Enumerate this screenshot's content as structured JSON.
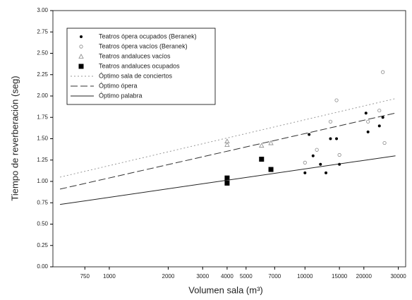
{
  "chart_data": {
    "type": "scatter",
    "xscale": "log",
    "x_label": "Volumen sala (m³)",
    "y_label": "Tiempo de reverberación (seg)",
    "xlim": [
      515,
      32700
    ],
    "ylim": [
      0,
      3
    ],
    "xticks": [
      750,
      1000,
      2000,
      3000,
      4000,
      5000,
      7000,
      10000,
      15000,
      20000,
      30000
    ],
    "yticks": [
      {
        "value": 0,
        "label": "0.00"
      },
      {
        "value": 0.25,
        "label": "0.25"
      },
      {
        "value": 0.5,
        "label": "0.50"
      },
      {
        "value": 0.75,
        "label": "0.75"
      },
      {
        "value": 1,
        "label": "1.00"
      },
      {
        "value": 1.25,
        "label": "1.25"
      },
      {
        "value": 1.5,
        "label": "1.50"
      },
      {
        "value": 1.75,
        "label": "1.75"
      },
      {
        "value": 2,
        "label": "2.00"
      },
      {
        "value": 2.25,
        "label": "2.25"
      },
      {
        "value": 2.5,
        "label": "2.50"
      },
      {
        "value": 2.75,
        "label": "2.75"
      },
      {
        "value": 3,
        "label": "3.00"
      }
    ],
    "series": [
      {
        "name": "Teatros ópera ocupados (Beranek)",
        "color": "#000000",
        "marker": "dot",
        "x": [
          10000,
          10500,
          11000,
          12000,
          12800,
          13500,
          14500,
          15000,
          20500,
          21000,
          24000,
          25000
        ],
        "values": [
          1.1,
          1.55,
          1.3,
          1.2,
          1.1,
          1.5,
          1.5,
          1.2,
          1.8,
          1.58,
          1.65,
          1.75
        ]
      },
      {
        "name": "Teatros ópera vacíos (Beranek)",
        "color": "#888888",
        "marker": "circle",
        "x": [
          10000,
          11500,
          13500,
          14500,
          15000,
          21000,
          24000,
          25000,
          25500
        ],
        "values": [
          1.22,
          1.37,
          1.7,
          1.95,
          1.31,
          1.7,
          1.83,
          2.28,
          1.45
        ]
      },
      {
        "name": "Teatros andaluces vacíos",
        "color": "#888888",
        "marker": "triangle",
        "x": [
          4000,
          4000,
          6000,
          6700
        ],
        "values": [
          1.47,
          1.43,
          1.42,
          1.45
        ]
      },
      {
        "name": "Teatros andaluces ocupados",
        "color": "#000000",
        "marker": "square",
        "x": [
          4000,
          4000,
          6000,
          6700
        ],
        "values": [
          1.04,
          0.98,
          1.26,
          1.14
        ]
      },
      {
        "name": "Óptimo sala de conciertos",
        "color": "#999999",
        "line": "dotted",
        "x": [
          560,
          29000
        ],
        "values": [
          1.05,
          1.97
        ]
      },
      {
        "name": "Óptimo ópera",
        "color": "#333333",
        "line": "dashed",
        "x": [
          560,
          29000
        ],
        "values": [
          0.91,
          1.8
        ]
      },
      {
        "name": "Óptimo palabra",
        "color": "#222222",
        "line": "solid",
        "x": [
          560,
          29000
        ],
        "values": [
          0.73,
          1.3
        ]
      }
    ]
  }
}
